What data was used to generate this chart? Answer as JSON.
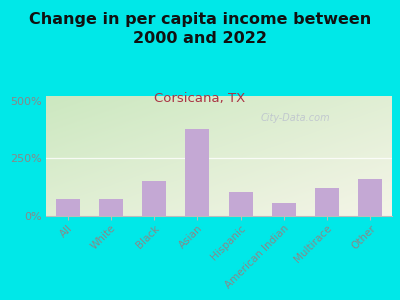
{
  "title": "Change in per capita income between\n2000 and 2022",
  "subtitle": "Corsicana, TX",
  "categories": [
    "All",
    "White",
    "Black",
    "Asian",
    "Hispanic",
    "American Indian",
    "Multirace",
    "Other"
  ],
  "values": [
    75,
    75,
    150,
    375,
    105,
    55,
    120,
    160
  ],
  "bar_color": "#c4a8d4",
  "background_outer": "#00e8e8",
  "background_chart_top_left": "#cce8c0",
  "background_chart_bottom_right": "#f5f5e8",
  "title_fontsize": 11.5,
  "subtitle_fontsize": 9.5,
  "subtitle_color": "#aa3344",
  "title_color": "#111111",
  "tick_color": "#888888",
  "yticks": [
    0,
    250,
    500
  ],
  "ylim": [
    0,
    520
  ],
  "watermark": "City-Data.com"
}
